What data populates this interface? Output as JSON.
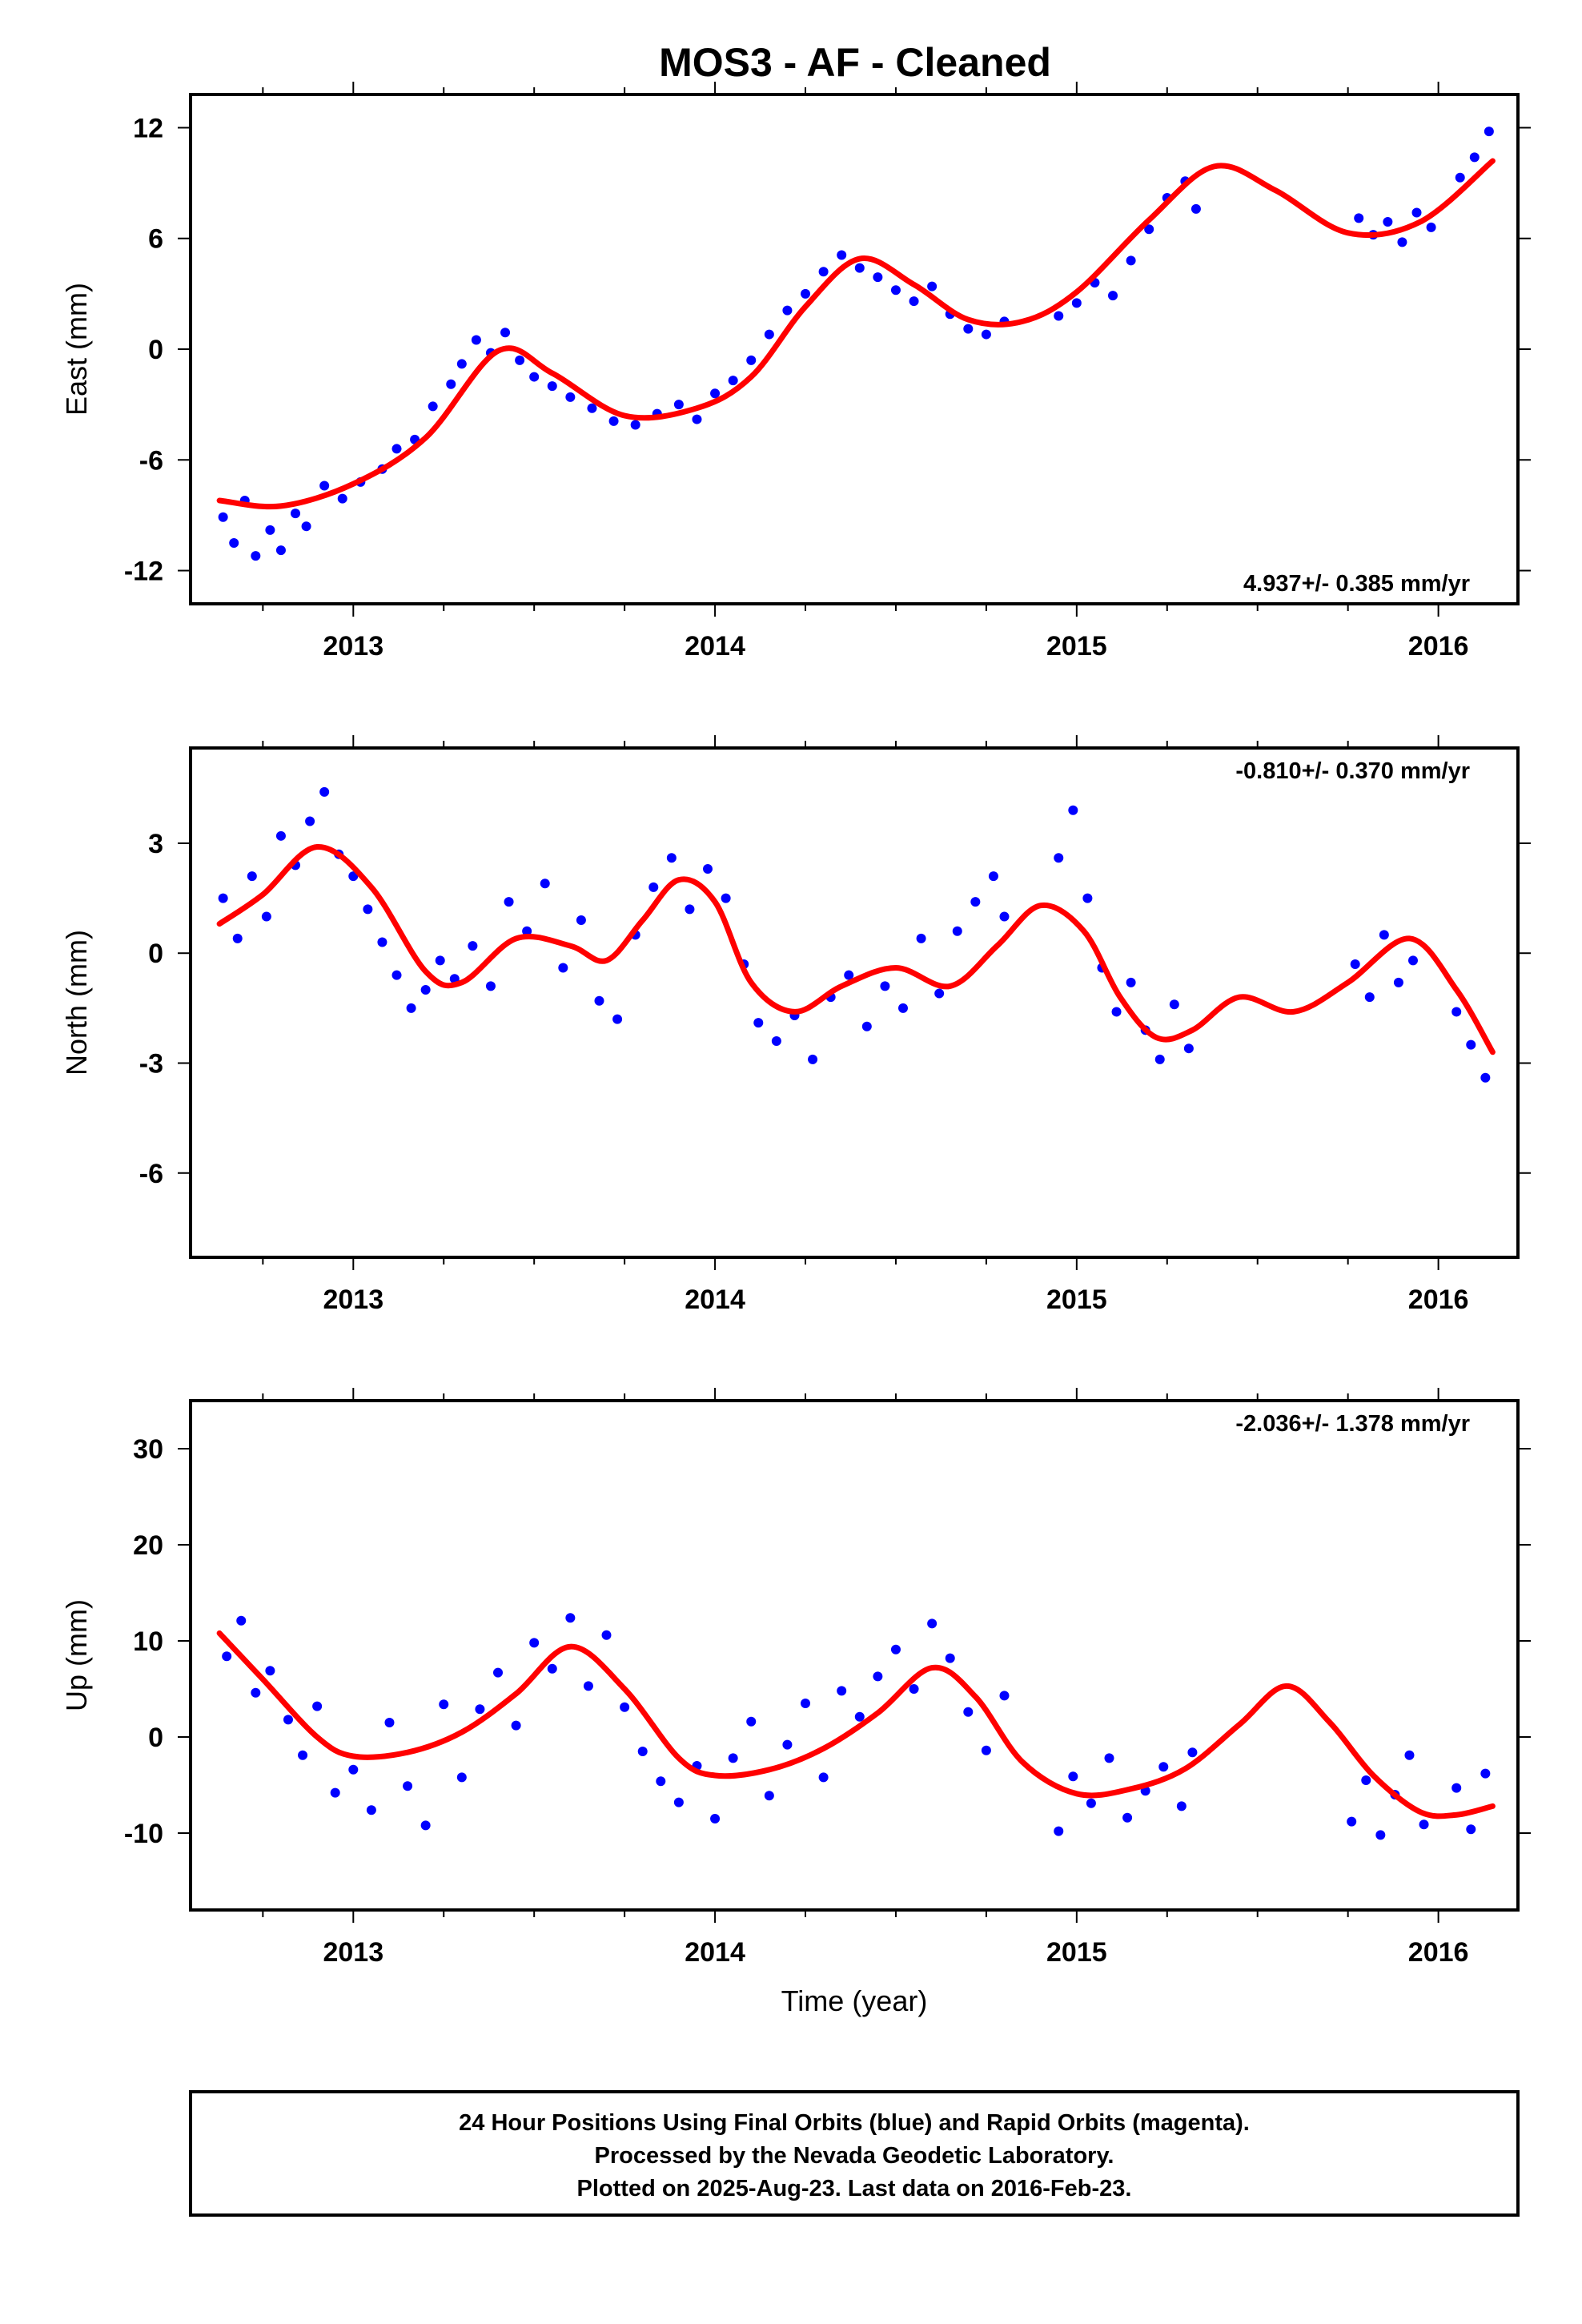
{
  "title": "MOS3  - AF - Cleaned",
  "colors": {
    "final_orbits": "#0000ff",
    "fit_curve": "#ff0000",
    "frame": "#000000"
  },
  "chart_data": [
    {
      "type": "scatter",
      "name": "east",
      "ylabel": "East (mm)",
      "xlabel": "",
      "xlim": [
        2012.55,
        2016.22
      ],
      "ylim": [
        -13.8,
        13.8
      ],
      "x_ticks": [
        2013,
        2014,
        2015,
        2016
      ],
      "y_ticks": [
        -12,
        -6,
        0,
        6,
        12
      ],
      "rate_text": "4.937+/- 0.385 mm/yr",
      "rate_position": "bottom-right",
      "grid": false,
      "fit_curve": {
        "x": [
          2012.63,
          2012.8,
          2013.0,
          2013.2,
          2013.4,
          2013.55,
          2013.75,
          2013.95,
          2014.1,
          2014.25,
          2014.4,
          2014.55,
          2014.7,
          2014.85,
          2015.0,
          2015.2,
          2015.38,
          2015.55,
          2015.75,
          2015.95,
          2016.15
        ],
        "y": [
          -8.2,
          -8.5,
          -7.3,
          -4.8,
          -0.1,
          -1.3,
          -3.6,
          -3.2,
          -1.5,
          2.3,
          4.9,
          3.5,
          1.6,
          1.5,
          3.1,
          7.0,
          9.9,
          8.6,
          6.3,
          6.9,
          10.2
        ]
      },
      "points": [
        [
          2012.64,
          -9.1
        ],
        [
          2012.67,
          -10.5
        ],
        [
          2012.7,
          -8.2
        ],
        [
          2012.73,
          -11.2
        ],
        [
          2012.77,
          -9.8
        ],
        [
          2012.8,
          -10.9
        ],
        [
          2012.84,
          -8.9
        ],
        [
          2012.87,
          -9.6
        ],
        [
          2012.92,
          -7.4
        ],
        [
          2012.97,
          -8.1
        ],
        [
          2013.02,
          -7.2
        ],
        [
          2013.08,
          -6.5
        ],
        [
          2013.12,
          -5.4
        ],
        [
          2013.17,
          -4.9
        ],
        [
          2013.22,
          -3.1
        ],
        [
          2013.27,
          -1.9
        ],
        [
          2013.3,
          -0.8
        ],
        [
          2013.34,
          0.5
        ],
        [
          2013.38,
          -0.2
        ],
        [
          2013.42,
          0.9
        ],
        [
          2013.46,
          -0.6
        ],
        [
          2013.5,
          -1.5
        ],
        [
          2013.55,
          -2.0
        ],
        [
          2013.6,
          -2.6
        ],
        [
          2013.66,
          -3.2
        ],
        [
          2013.72,
          -3.9
        ],
        [
          2013.78,
          -4.1
        ],
        [
          2013.84,
          -3.5
        ],
        [
          2013.9,
          -3.0
        ],
        [
          2013.95,
          -3.8
        ],
        [
          2014.0,
          -2.4
        ],
        [
          2014.05,
          -1.7
        ],
        [
          2014.1,
          -0.6
        ],
        [
          2014.15,
          0.8
        ],
        [
          2014.2,
          2.1
        ],
        [
          2014.25,
          3.0
        ],
        [
          2014.3,
          4.2
        ],
        [
          2014.35,
          5.1
        ],
        [
          2014.4,
          4.4
        ],
        [
          2014.45,
          3.9
        ],
        [
          2014.5,
          3.2
        ],
        [
          2014.55,
          2.6
        ],
        [
          2014.6,
          3.4
        ],
        [
          2014.65,
          1.9
        ],
        [
          2014.7,
          1.1
        ],
        [
          2014.75,
          0.8
        ],
        [
          2014.8,
          1.5
        ],
        [
          2014.95,
          1.8
        ],
        [
          2015.0,
          2.5
        ],
        [
          2015.05,
          3.6
        ],
        [
          2015.1,
          2.9
        ],
        [
          2015.15,
          4.8
        ],
        [
          2015.2,
          6.5
        ],
        [
          2015.25,
          8.2
        ],
        [
          2015.3,
          9.1
        ],
        [
          2015.33,
          7.6
        ],
        [
          2015.78,
          7.1
        ],
        [
          2015.82,
          6.2
        ],
        [
          2015.86,
          6.9
        ],
        [
          2015.9,
          5.8
        ],
        [
          2015.94,
          7.4
        ],
        [
          2015.98,
          6.6
        ],
        [
          2016.06,
          9.3
        ],
        [
          2016.1,
          10.4
        ],
        [
          2016.14,
          11.8
        ]
      ]
    },
    {
      "type": "scatter",
      "name": "north",
      "ylabel": "North (mm)",
      "xlabel": "",
      "xlim": [
        2012.55,
        2016.22
      ],
      "ylim": [
        -8.3,
        5.6
      ],
      "x_ticks": [
        2013,
        2014,
        2015,
        2016
      ],
      "y_ticks": [
        -6,
        -3,
        0,
        3
      ],
      "rate_text": "-0.810+/- 0.370 mm/yr",
      "rate_position": "top-right",
      "grid": false,
      "fit_curve": {
        "x": [
          2012.63,
          2012.75,
          2012.9,
          2013.05,
          2013.2,
          2013.3,
          2013.45,
          2013.6,
          2013.7,
          2013.8,
          2013.9,
          2014.0,
          2014.1,
          2014.22,
          2014.35,
          2014.5,
          2014.65,
          2014.78,
          2014.9,
          2015.02,
          2015.12,
          2015.22,
          2015.32,
          2015.45,
          2015.6,
          2015.75,
          2015.92,
          2016.05,
          2016.15
        ],
        "y": [
          0.8,
          1.6,
          2.9,
          1.8,
          -0.5,
          -0.8,
          0.4,
          0.2,
          -0.2,
          0.9,
          2.0,
          1.4,
          -0.8,
          -1.6,
          -0.9,
          -0.4,
          -0.9,
          0.2,
          1.3,
          0.6,
          -1.2,
          -2.3,
          -2.1,
          -1.2,
          -1.6,
          -0.8,
          0.4,
          -1.0,
          -2.7
        ]
      },
      "points": [
        [
          2012.64,
          1.5
        ],
        [
          2012.68,
          0.4
        ],
        [
          2012.72,
          2.1
        ],
        [
          2012.76,
          1.0
        ],
        [
          2012.8,
          3.2
        ],
        [
          2012.84,
          2.4
        ],
        [
          2012.88,
          3.6
        ],
        [
          2012.92,
          4.4
        ],
        [
          2012.96,
          2.7
        ],
        [
          2013.0,
          2.1
        ],
        [
          2013.04,
          1.2
        ],
        [
          2013.08,
          0.3
        ],
        [
          2013.12,
          -0.6
        ],
        [
          2013.16,
          -1.5
        ],
        [
          2013.2,
          -1.0
        ],
        [
          2013.24,
          -0.2
        ],
        [
          2013.28,
          -0.7
        ],
        [
          2013.33,
          0.2
        ],
        [
          2013.38,
          -0.9
        ],
        [
          2013.43,
          1.4
        ],
        [
          2013.48,
          0.6
        ],
        [
          2013.53,
          1.9
        ],
        [
          2013.58,
          -0.4
        ],
        [
          2013.63,
          0.9
        ],
        [
          2013.68,
          -1.3
        ],
        [
          2013.73,
          -1.8
        ],
        [
          2013.78,
          0.5
        ],
        [
          2013.83,
          1.8
        ],
        [
          2013.88,
          2.6
        ],
        [
          2013.93,
          1.2
        ],
        [
          2013.98,
          2.3
        ],
        [
          2014.03,
          1.5
        ],
        [
          2014.08,
          -0.3
        ],
        [
          2014.12,
          -1.9
        ],
        [
          2014.17,
          -2.4
        ],
        [
          2014.22,
          -1.7
        ],
        [
          2014.27,
          -2.9
        ],
        [
          2014.32,
          -1.2
        ],
        [
          2014.37,
          -0.6
        ],
        [
          2014.42,
          -2.0
        ],
        [
          2014.47,
          -0.9
        ],
        [
          2014.52,
          -1.5
        ],
        [
          2014.57,
          0.4
        ],
        [
          2014.62,
          -1.1
        ],
        [
          2014.67,
          0.6
        ],
        [
          2014.72,
          1.4
        ],
        [
          2014.77,
          2.1
        ],
        [
          2014.8,
          1.0
        ],
        [
          2014.95,
          2.6
        ],
        [
          2014.99,
          3.9
        ],
        [
          2015.03,
          1.5
        ],
        [
          2015.07,
          -0.4
        ],
        [
          2015.11,
          -1.6
        ],
        [
          2015.15,
          -0.8
        ],
        [
          2015.19,
          -2.1
        ],
        [
          2015.23,
          -2.9
        ],
        [
          2015.27,
          -1.4
        ],
        [
          2015.31,
          -2.6
        ],
        [
          2015.77,
          -0.3
        ],
        [
          2015.81,
          -1.2
        ],
        [
          2015.85,
          0.5
        ],
        [
          2015.89,
          -0.8
        ],
        [
          2015.93,
          -0.2
        ],
        [
          2016.05,
          -1.6
        ],
        [
          2016.09,
          -2.5
        ],
        [
          2016.13,
          -3.4
        ]
      ]
    },
    {
      "type": "scatter",
      "name": "up",
      "ylabel": "Up (mm)",
      "xlabel": "Time (year)",
      "xlim": [
        2012.55,
        2016.22
      ],
      "ylim": [
        -18,
        35
      ],
      "x_ticks": [
        2013,
        2014,
        2015,
        2016
      ],
      "y_ticks": [
        -10,
        0,
        10,
        20,
        30
      ],
      "rate_text": "-2.036+/- 1.378 mm/yr",
      "rate_position": "top-right",
      "grid": false,
      "fit_curve": {
        "x": [
          2012.63,
          2012.75,
          2012.9,
          2013.0,
          2013.15,
          2013.3,
          2013.45,
          2013.6,
          2013.75,
          2013.9,
          2014.0,
          2014.15,
          2014.3,
          2014.45,
          2014.6,
          2014.72,
          2014.85,
          2015.0,
          2015.15,
          2015.3,
          2015.45,
          2015.58,
          2015.7,
          2015.82,
          2015.95,
          2016.05,
          2016.15
        ],
        "y": [
          10.8,
          6.0,
          0.0,
          -2.0,
          -1.6,
          0.5,
          4.5,
          9.4,
          5.0,
          -2.2,
          -4.0,
          -3.4,
          -1.2,
          2.5,
          7.2,
          4.2,
          -2.6,
          -5.9,
          -5.4,
          -3.3,
          1.3,
          5.3,
          1.5,
          -4.0,
          -7.8,
          -8.1,
          -7.2
        ]
      },
      "points": [
        [
          2012.65,
          8.4
        ],
        [
          2012.69,
          12.1
        ],
        [
          2012.73,
          4.6
        ],
        [
          2012.77,
          6.9
        ],
        [
          2012.82,
          1.8
        ],
        [
          2012.86,
          -1.9
        ],
        [
          2012.9,
          3.2
        ],
        [
          2012.95,
          -5.8
        ],
        [
          2013.0,
          -3.4
        ],
        [
          2013.05,
          -7.6
        ],
        [
          2013.1,
          1.5
        ],
        [
          2013.15,
          -5.1
        ],
        [
          2013.2,
          -9.2
        ],
        [
          2013.25,
          3.4
        ],
        [
          2013.3,
          -4.2
        ],
        [
          2013.35,
          2.9
        ],
        [
          2013.4,
          6.7
        ],
        [
          2013.45,
          1.2
        ],
        [
          2013.5,
          9.8
        ],
        [
          2013.55,
          7.1
        ],
        [
          2013.6,
          12.4
        ],
        [
          2013.65,
          5.3
        ],
        [
          2013.7,
          10.6
        ],
        [
          2013.75,
          3.1
        ],
        [
          2013.8,
          -1.5
        ],
        [
          2013.85,
          -4.6
        ],
        [
          2013.9,
          -6.8
        ],
        [
          2013.95,
          -3.0
        ],
        [
          2014.0,
          -8.5
        ],
        [
          2014.05,
          -2.2
        ],
        [
          2014.1,
          1.6
        ],
        [
          2014.15,
          -6.1
        ],
        [
          2014.2,
          -0.8
        ],
        [
          2014.25,
          3.5
        ],
        [
          2014.3,
          -4.2
        ],
        [
          2014.35,
          4.8
        ],
        [
          2014.4,
          2.1
        ],
        [
          2014.45,
          6.3
        ],
        [
          2014.5,
          9.1
        ],
        [
          2014.55,
          5.0
        ],
        [
          2014.6,
          11.8
        ],
        [
          2014.65,
          8.2
        ],
        [
          2014.7,
          2.6
        ],
        [
          2014.75,
          -1.4
        ],
        [
          2014.8,
          4.3
        ],
        [
          2014.95,
          -9.8
        ],
        [
          2014.99,
          -4.1
        ],
        [
          2015.04,
          -6.9
        ],
        [
          2015.09,
          -2.2
        ],
        [
          2015.14,
          -8.4
        ],
        [
          2015.19,
          -5.6
        ],
        [
          2015.24,
          -3.1
        ],
        [
          2015.29,
          -7.2
        ],
        [
          2015.32,
          -1.6
        ],
        [
          2015.76,
          -8.8
        ],
        [
          2015.8,
          -4.5
        ],
        [
          2015.84,
          -10.2
        ],
        [
          2015.88,
          -6.0
        ],
        [
          2015.92,
          -1.9
        ],
        [
          2015.96,
          -9.1
        ],
        [
          2016.05,
          -5.3
        ],
        [
          2016.09,
          -9.6
        ],
        [
          2016.13,
          -3.8
        ]
      ]
    }
  ],
  "footer": {
    "lines": [
      "24 Hour Positions Using Final Orbits (blue) and Rapid Orbits (magenta).",
      "Processed by the Nevada Geodetic Laboratory.",
      "Plotted on 2025-Aug-23. Last data on 2016-Feb-23."
    ]
  }
}
